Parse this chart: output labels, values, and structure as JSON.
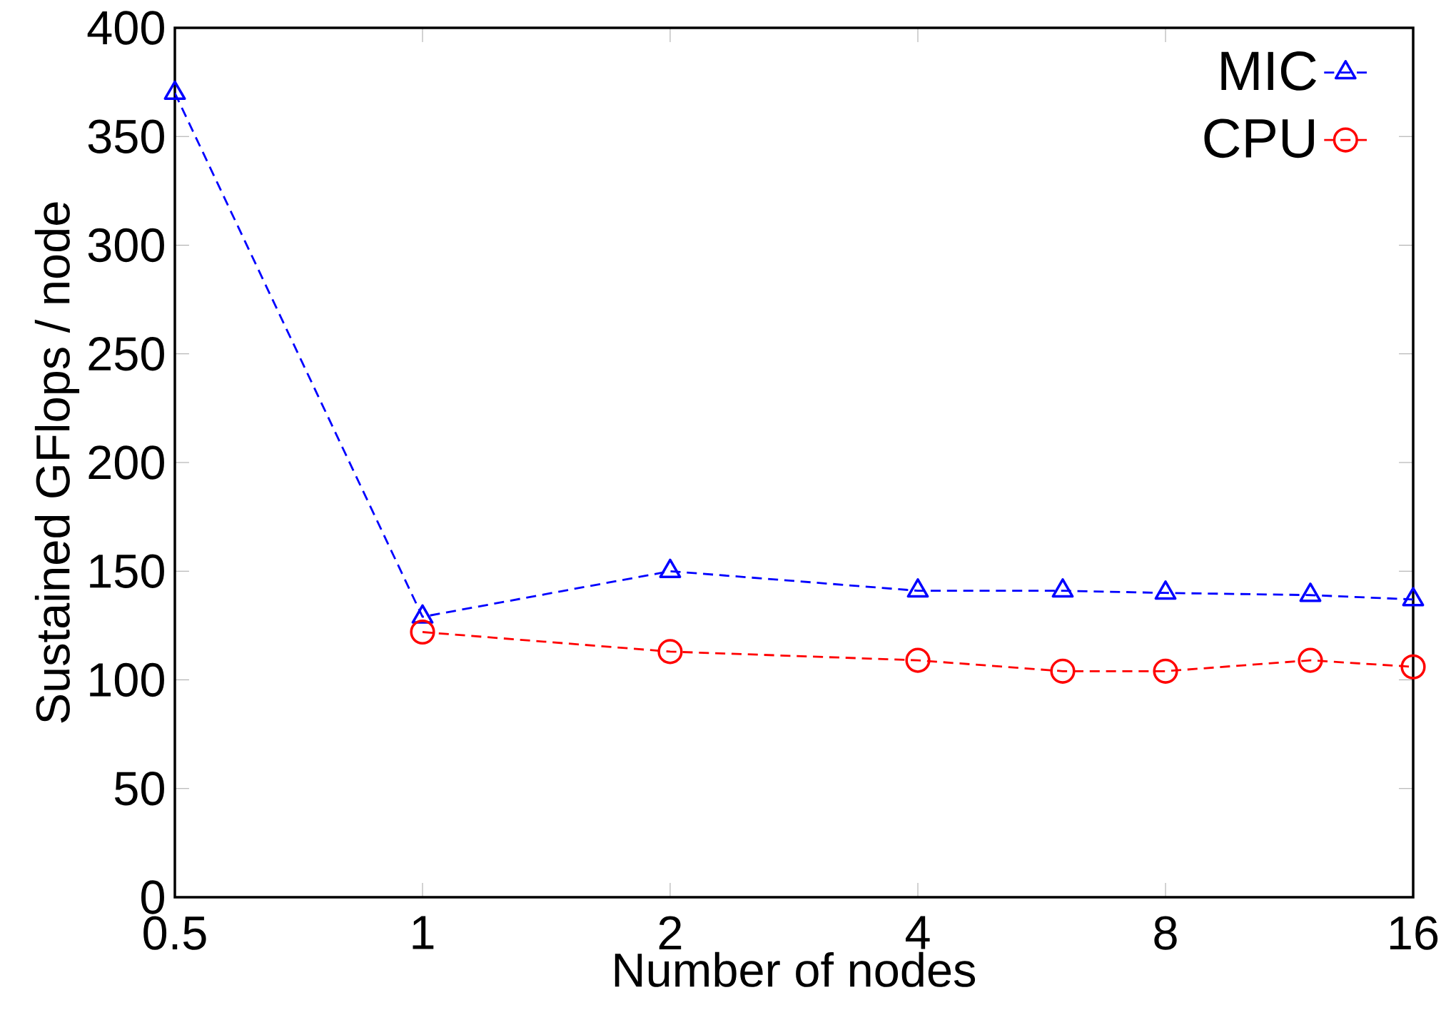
{
  "chart_data": {
    "type": "line",
    "xlabel": "Number of nodes",
    "ylabel": "Sustained GFlops / node",
    "log": "x",
    "xlim": [
      0.5,
      16
    ],
    "xticks": [
      0.5,
      1,
      2,
      4,
      8,
      16
    ],
    "ylim": [
      0,
      400
    ],
    "yticks": [
      0,
      50,
      100,
      150,
      200,
      250,
      300,
      350,
      400
    ],
    "grid": false,
    "legend": "top right",
    "line_style": "dashed",
    "series": [
      {
        "name": "MIC",
        "color": "#0000ff",
        "marker": "triangle",
        "x": [
          0.5,
          1,
          2,
          4,
          6,
          8,
          12,
          16
        ],
        "values": [
          370,
          129,
          150,
          141,
          141,
          140,
          139,
          137
        ]
      },
      {
        "name": "CPU",
        "color": "#ff0000",
        "marker": "circle",
        "x": [
          1,
          2,
          4,
          6,
          8,
          12,
          16
        ],
        "values": [
          122,
          113,
          109,
          104,
          104,
          109,
          106
        ]
      }
    ]
  }
}
